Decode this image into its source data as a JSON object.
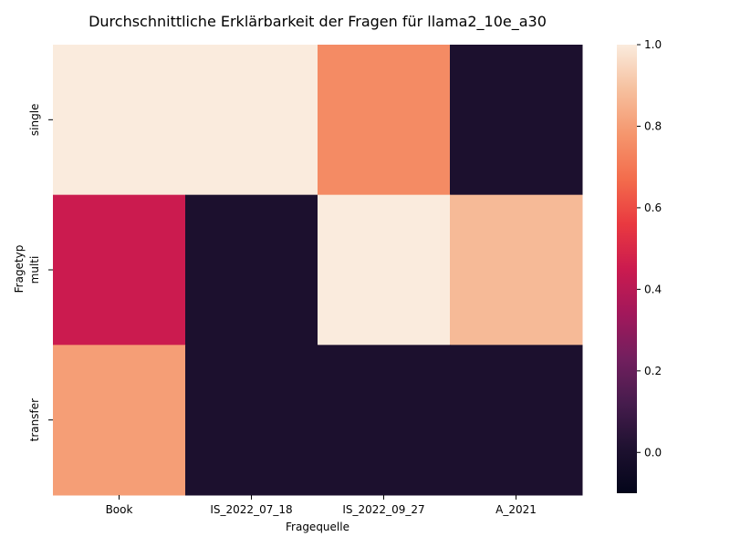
{
  "chart_data": {
    "type": "heatmap",
    "title": "Durchschnittliche Erklärbarkeit der Fragen für llama2_10e_a30",
    "xlabel": "Fragequelle",
    "ylabel": "Fragetyp",
    "x_categories": [
      "Book",
      "IS_2022_07_18",
      "IS_2022_09_27",
      "A_2021"
    ],
    "y_categories": [
      "single",
      "multi",
      "transfer"
    ],
    "values": [
      [
        1.0,
        1.0,
        0.75,
        0.0
      ],
      [
        0.45,
        0.0,
        1.0,
        0.875
      ],
      [
        0.8,
        0.0,
        0.0,
        0.0
      ]
    ],
    "colorbar": {
      "vmin": -0.1,
      "vmax": 1.0,
      "ticks": [
        1.0,
        0.8,
        0.6,
        0.4,
        0.2,
        0.0
      ],
      "tick_labels": [
        "1.0",
        "0.8",
        "0.6",
        "0.4",
        "0.2",
        "0.0"
      ],
      "colormap": "rocket"
    }
  }
}
